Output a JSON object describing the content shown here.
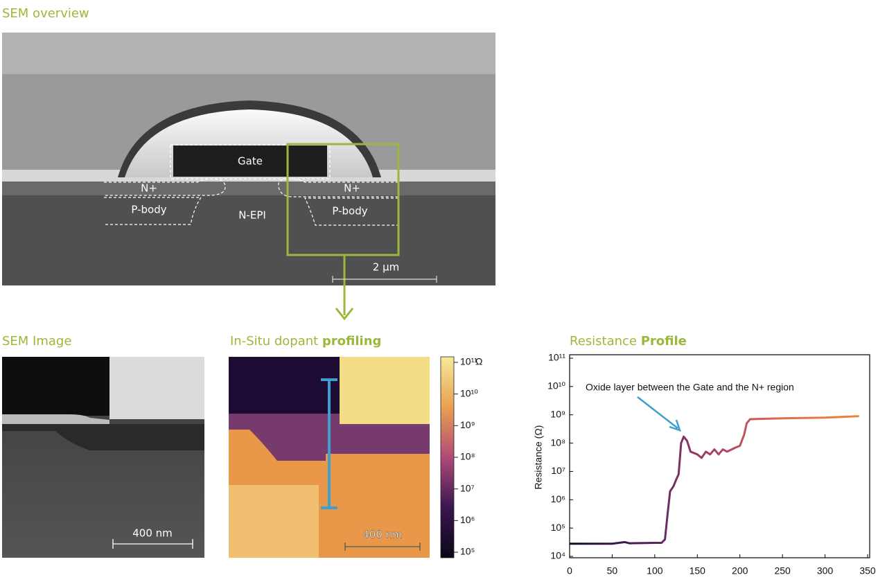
{
  "overview": {
    "title": "SEM overview",
    "labels": [
      "Gate",
      "N+",
      "N+",
      "P-body",
      "P-body",
      "N-EPI"
    ],
    "scale_bar": "2 µm"
  },
  "sem_image": {
    "title": "SEM Image",
    "scale_bar": "400 nm"
  },
  "dopant_map": {
    "title": "In-Situ dopant",
    "title_bold": "profiling",
    "scale_bar": "400 nm",
    "colorbar": {
      "unit": "Ω",
      "colors": [
        "#f6ea9a",
        "#e9a050",
        "#b04a78",
        "#3a1650",
        "#0c0618"
      ],
      "ticks": [
        {
          "value": 100000000000,
          "label": "10¹¹"
        },
        {
          "value": 10000000000,
          "label": "10¹⁰"
        },
        {
          "value": 1000000000,
          "label": "10⁹"
        },
        {
          "value": 100000000,
          "label": "10⁸"
        },
        {
          "value": 10000000,
          "label": "10⁷"
        },
        {
          "value": 1000000,
          "label": "10⁶"
        },
        {
          "value": 100000,
          "label": "10⁵"
        }
      ]
    }
  },
  "chart_data": {
    "type": "line",
    "title": "Resistance",
    "title_bold": "Profile",
    "y_label": "Resistance (Ω)",
    "annotation": "Oxide layer between the Gate and the N+ region",
    "log_y": true,
    "colors": [
      "#150a24",
      "#4a1f5e",
      "#a8406a",
      "#e0704a",
      "#e8843c"
    ],
    "x": [
      0,
      50,
      65,
      70,
      100,
      108,
      112,
      115,
      118,
      122,
      125,
      128,
      131,
      134,
      138,
      142,
      150,
      155,
      160,
      165,
      170,
      175,
      180,
      185,
      195,
      200,
      205,
      208,
      212,
      250,
      300,
      340
    ],
    "series": [
      {
        "values": [
          28000,
          28000,
          32000,
          29000,
          30000,
          30000,
          40000,
          300000,
          2000000,
          3000000,
          5000000,
          8000000,
          100000000,
          170000000,
          120000000,
          50000000,
          40000000,
          30000000,
          50000000,
          40000000,
          60000000,
          40000000,
          60000000,
          50000000,
          70000000,
          80000000,
          200000000,
          500000000,
          700000000,
          750000000,
          800000000,
          900000000
        ]
      }
    ],
    "xlim": [
      0,
      350
    ],
    "xticks": [
      0,
      50,
      100,
      150,
      200,
      250,
      300,
      350
    ],
    "ylim": [
      10000,
      100000000000
    ],
    "yticks": [
      {
        "value": 10000,
        "label": "10⁴"
      },
      {
        "value": 100000,
        "label": "10⁵"
      },
      {
        "value": 1000000,
        "label": "10⁶"
      },
      {
        "value": 10000000,
        "label": "10⁷"
      },
      {
        "value": 100000000,
        "label": "10⁸"
      },
      {
        "value": 1000000000,
        "label": "10⁹"
      },
      {
        "value": 10000000000,
        "label": "10¹⁰"
      },
      {
        "value": 100000000000,
        "label": "10¹¹"
      }
    ]
  }
}
